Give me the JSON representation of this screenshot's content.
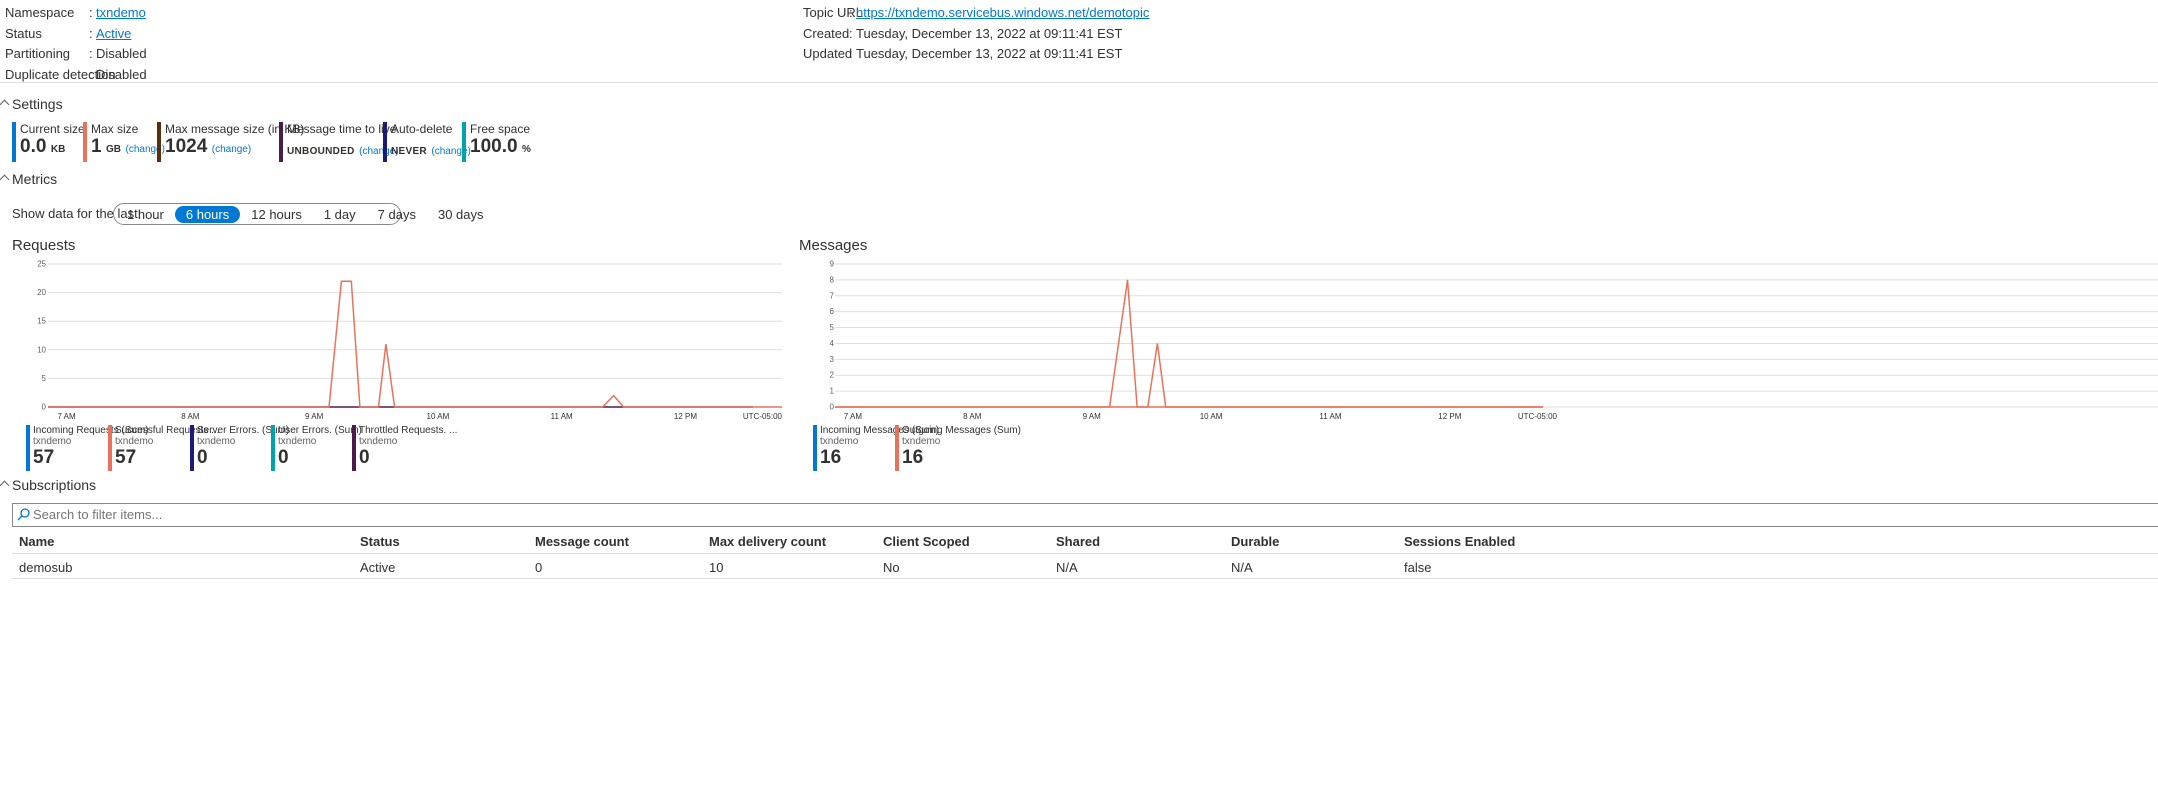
{
  "essentials": {
    "left": [
      {
        "label": "Namespace",
        "value": "txndemo",
        "link": true
      },
      {
        "label": "Status",
        "value": "Active",
        "link": true
      },
      {
        "label": "Partitioning",
        "value": "Disabled",
        "link": false
      },
      {
        "label": "Duplicate detection",
        "value": "Disabled",
        "link": false
      }
    ],
    "right": [
      {
        "label": "Topic URL",
        "value": "https://txndemo.servicebus.windows.net/demotopic",
        "link": true
      },
      {
        "label": "Created",
        "value": "Tuesday, December 13, 2022 at 09:11:41 EST",
        "link": false
      },
      {
        "label": "Updated",
        "value": "Tuesday, December 13, 2022 at 09:11:41 EST",
        "link": false
      }
    ],
    "separator": ":"
  },
  "settings": {
    "title": "Settings",
    "tiles": [
      {
        "label": "Current size",
        "value": "0.0",
        "unit": "KB",
        "change": "",
        "color": "#0078d4"
      },
      {
        "label": "Max size",
        "value": "1",
        "unit": "GB",
        "change": "(change)",
        "color": "#e8735a"
      },
      {
        "label": "Max message size (in KB)",
        "value": "1024",
        "unit": "",
        "change": "(change)",
        "color": "#5c2e0b"
      },
      {
        "label": "Message time to live",
        "value": "UNBOUNDED",
        "unit": "",
        "change": "(change)",
        "color": "#4b1c4b"
      },
      {
        "label": "Auto-delete",
        "value": "NEVER",
        "unit": "",
        "change": "(change)",
        "color": "#1a1a7a"
      },
      {
        "label": "Free space",
        "value": "100.0",
        "unit": "%",
        "change": "",
        "color": "#00a2ad"
      }
    ]
  },
  "metrics": {
    "title": "Metrics",
    "show_label": "Show data for the last:",
    "ranges": [
      "1 hour",
      "6 hours",
      "12 hours",
      "1 day",
      "7 days",
      "30 days"
    ],
    "selected": "6 hours"
  },
  "chart_data": [
    {
      "type": "line",
      "title": "Requests",
      "x_ticks": [
        "7 AM",
        "8 AM",
        "9 AM",
        "10 AM",
        "11 AM",
        "12 PM"
      ],
      "x_tick_hours": [
        7,
        8,
        9,
        10,
        11,
        12
      ],
      "x_start_hour": 6.85,
      "x_end_hour": 12.78,
      "timezone": "UTC-05:00",
      "y_ticks": [
        0,
        5,
        10,
        15,
        20,
        25
      ],
      "ylim": [
        0,
        25
      ],
      "grid": true,
      "series_points": {
        "x_hours": [
          6.85,
          9.12,
          9.22,
          9.3,
          9.37,
          9.52,
          9.58,
          9.65,
          11.33,
          11.42,
          11.5,
          12.78
        ],
        "values": [
          0,
          0,
          22,
          22,
          0,
          0,
          11,
          0,
          0,
          2,
          0,
          0
        ]
      },
      "legend": [
        {
          "name": "Incoming Requests (Sum)",
          "resource": "txndemo",
          "value": "57",
          "color": "#0078d4"
        },
        {
          "name": "Successful Requests ...",
          "resource": "txndemo",
          "value": "57",
          "color": "#e8735a"
        },
        {
          "name": "Server Errors. (Sum)",
          "resource": "txndemo",
          "value": "0",
          "color": "#1a1a7a"
        },
        {
          "name": "User Errors. (Sum)",
          "resource": "txndemo",
          "value": "0",
          "color": "#00a2ad"
        },
        {
          "name": "Throttled Requests. ...",
          "resource": "txndemo",
          "value": "0",
          "color": "#4b1c4b"
        }
      ]
    },
    {
      "type": "line",
      "title": "Messages",
      "x_ticks": [
        "7 AM",
        "8 AM",
        "9 AM",
        "10 AM",
        "11 AM",
        "12 PM"
      ],
      "x_tick_hours": [
        7,
        8,
        9,
        10,
        11,
        12
      ],
      "x_start_hour": 6.85,
      "x_end_hour": 12.78,
      "timezone": "UTC-05:00",
      "y_ticks": [
        0,
        1,
        2,
        3,
        4,
        5,
        6,
        7,
        8,
        9
      ],
      "ylim": [
        0,
        9
      ],
      "grid": true,
      "series_points": {
        "x_hours": [
          6.85,
          9.15,
          9.3,
          9.38,
          9.47,
          9.55,
          9.62,
          12.78
        ],
        "values": [
          0,
          0,
          8,
          0,
          0,
          4,
          0,
          0
        ]
      },
      "legend": [
        {
          "name": "Incoming Messages (Sum)",
          "resource": "txndemo",
          "value": "16",
          "color": "#0078d4"
        },
        {
          "name": "Outgoing Messages (Sum)",
          "resource": "txndemo",
          "value": "16",
          "color": "#e8735a"
        }
      ]
    }
  ],
  "subscriptions": {
    "title": "Subscriptions",
    "search_placeholder": "Search to filter items...",
    "columns": [
      "Name",
      "Status",
      "Message count",
      "Max delivery count",
      "Client Scoped",
      "Shared",
      "Durable",
      "Sessions Enabled"
    ],
    "rows": [
      [
        "demosub",
        "Active",
        "0",
        "10",
        "No",
        "N/A",
        "N/A",
        "false"
      ]
    ]
  },
  "colors": {
    "link": "#0078d4",
    "series_line": "#e8735a",
    "gridline": "#e1dfdd"
  }
}
